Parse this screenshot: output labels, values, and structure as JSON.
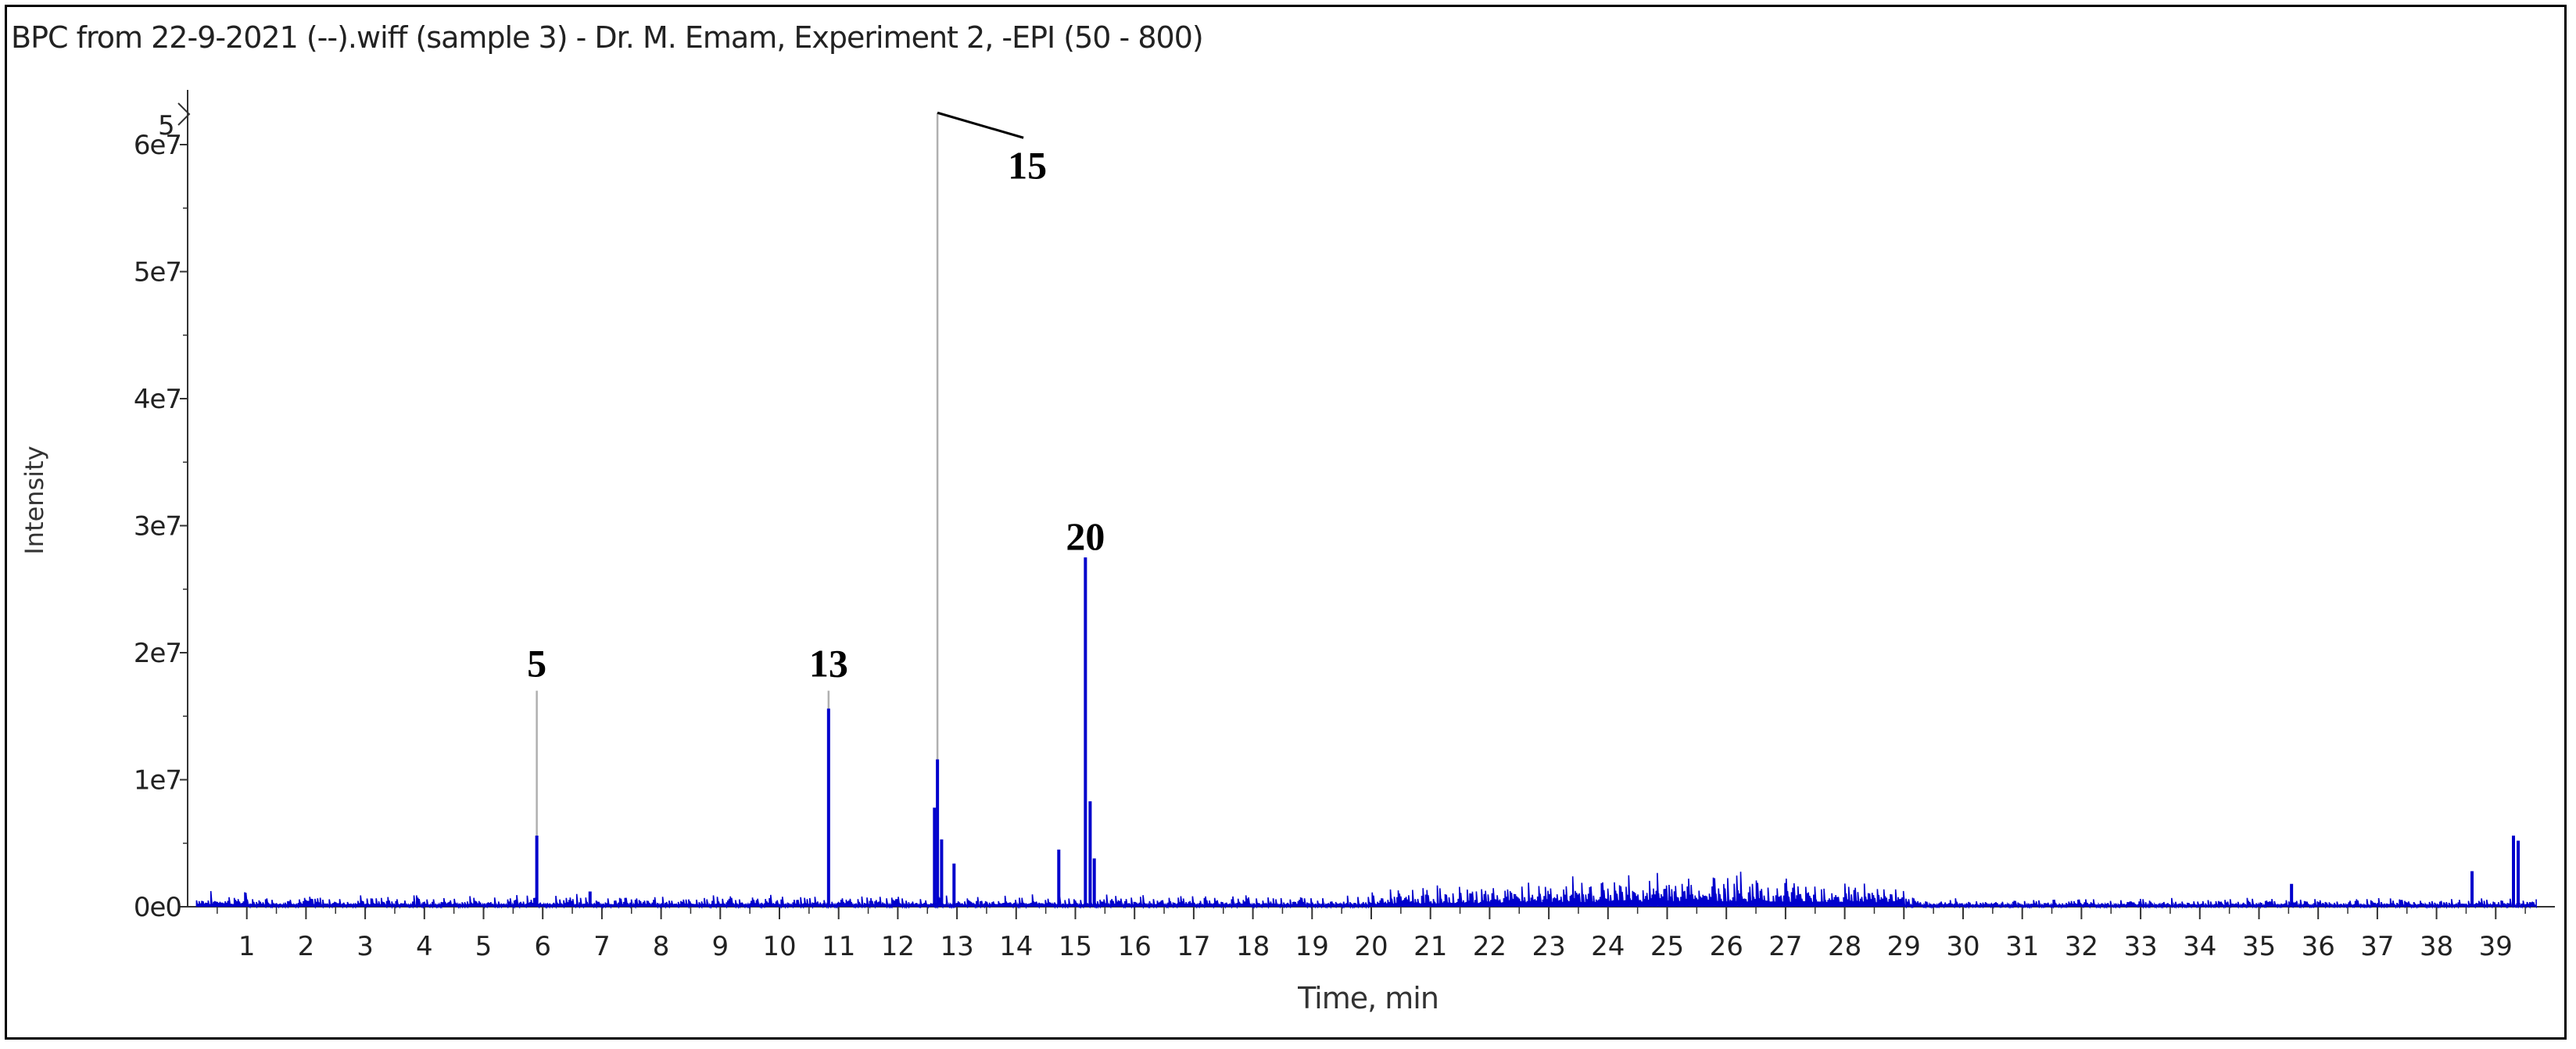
{
  "chart_data": {
    "type": "line",
    "title": "BPC from 22-9-2021 (--).wiff (sample 3) - Dr. M. Emam, Experiment 2, -EPI (50 - 800)",
    "xlabel": "Time, min",
    "ylabel": "Intensity",
    "xlim": [
      0,
      40
    ],
    "ylim": [
      0,
      64000000.0
    ],
    "x_ticks": [
      "1",
      "2",
      "3",
      "4",
      "5",
      "6",
      "7",
      "8",
      "9",
      "10",
      "11",
      "12",
      "13",
      "14",
      "15",
      "16",
      "17",
      "18",
      "19",
      "20",
      "21",
      "22",
      "23",
      "24",
      "25",
      "26",
      "27",
      "28",
      "29",
      "30",
      "31",
      "32",
      "33",
      "34",
      "35",
      "36",
      "37",
      "38",
      "39"
    ],
    "y_ticks": [
      "0e0",
      "1e7",
      "2e7",
      "3e7",
      "4e7",
      "5e7",
      "6e7"
    ],
    "series": [
      {
        "color": "#0000cc",
        "peaks": [
          {
            "x": 5.9,
            "y": 5600000.0
          },
          {
            "x": 6.8,
            "y": 1200000.0
          },
          {
            "x": 10.83,
            "y": 15600000.0
          },
          {
            "x": 12.62,
            "y": 7800000.0
          },
          {
            "x": 12.67,
            "y": 11600000.0
          },
          {
            "x": 12.74,
            "y": 5300000.0
          },
          {
            "x": 12.95,
            "y": 3400000.0
          },
          {
            "x": 14.72,
            "y": 4500000.0
          },
          {
            "x": 15.17,
            "y": 27500000.0
          },
          {
            "x": 15.25,
            "y": 8300000.0
          },
          {
            "x": 15.32,
            "y": 3800000.0
          },
          {
            "x": 35.55,
            "y": 1800000.0
          },
          {
            "x": 38.6,
            "y": 2800000.0
          },
          {
            "x": 39.3,
            "y": 5600000.0
          },
          {
            "x": 39.38,
            "y": 5200000.0
          }
        ]
      }
    ],
    "annotations": [
      {
        "label": "5",
        "x": 5.9,
        "y": 17500000.0
      },
      {
        "label": "13",
        "x": 10.83,
        "y": 17500000.0
      },
      {
        "label": "15",
        "x": 12.67,
        "y": 63000000.0
      },
      {
        "label": "20",
        "x": 15.17,
        "y": 27500000.0
      }
    ],
    "axis_marker": "5"
  }
}
